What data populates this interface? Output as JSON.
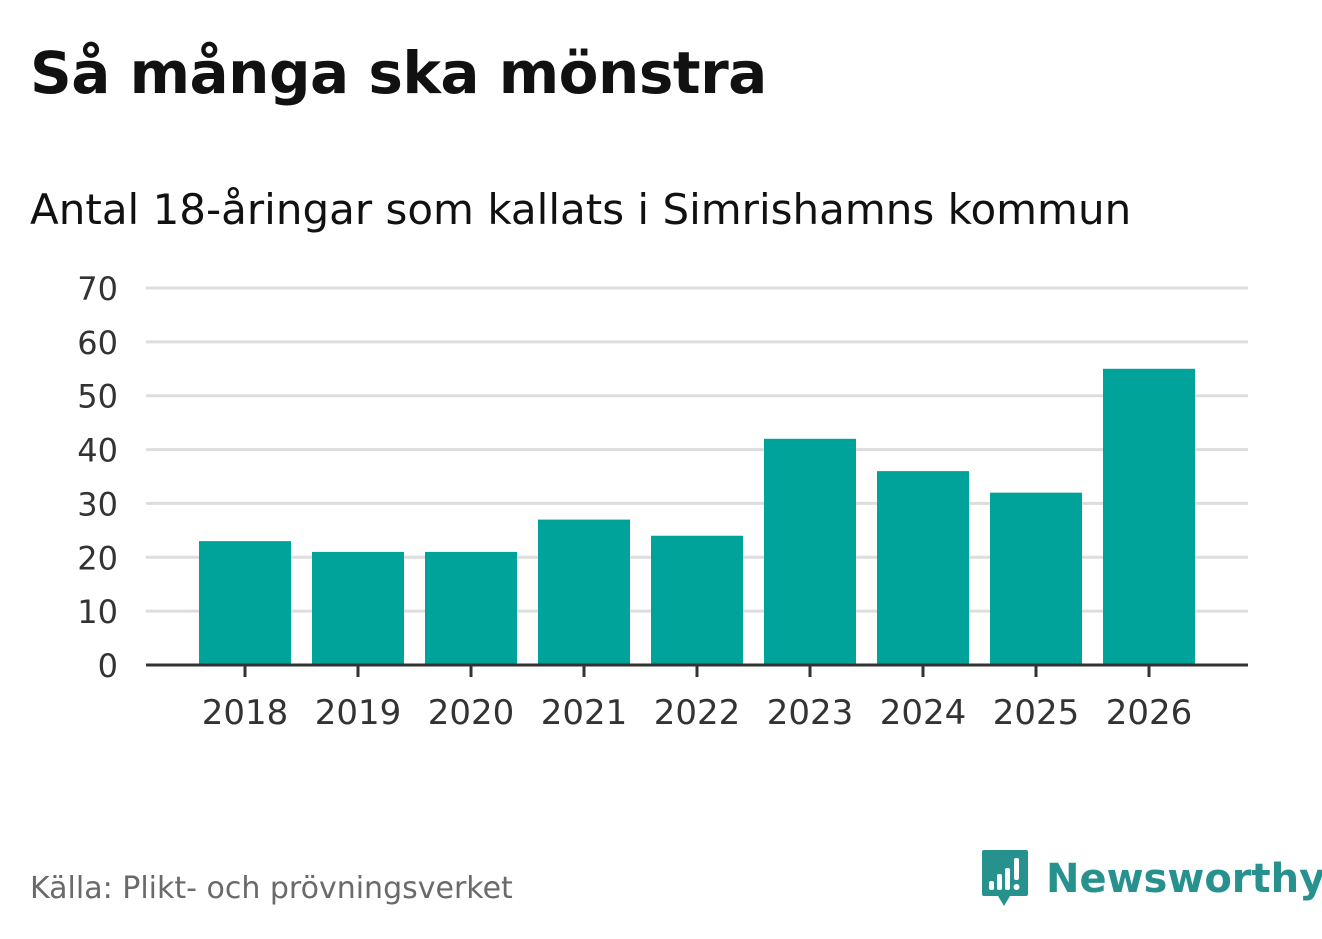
{
  "header": {
    "title": "Så många ska mönstra",
    "subtitle": "Antal 18-åringar som kallats i Simrishamns kommun"
  },
  "footer": {
    "source": "Källa: Plikt- och prövningsverket",
    "brand": "Newsworthy"
  },
  "colors": {
    "bar": "#00a39a",
    "grid": "#dddddd",
    "axis": "#333333",
    "brand": "#26918d"
  },
  "chart_data": {
    "type": "bar",
    "title": "Så många ska mönstra",
    "subtitle": "Antal 18-åringar som kallats i Simrishamns kommun",
    "xlabel": "",
    "ylabel": "",
    "categories": [
      "2018",
      "2019",
      "2020",
      "2021",
      "2022",
      "2023",
      "2024",
      "2025",
      "2026"
    ],
    "values": [
      23,
      21,
      21,
      27,
      24,
      42,
      36,
      32,
      55
    ],
    "ylim": [
      0,
      70
    ],
    "yticks": [
      0,
      10,
      20,
      30,
      40,
      50,
      60,
      70
    ],
    "grid": true,
    "legend": "none"
  }
}
